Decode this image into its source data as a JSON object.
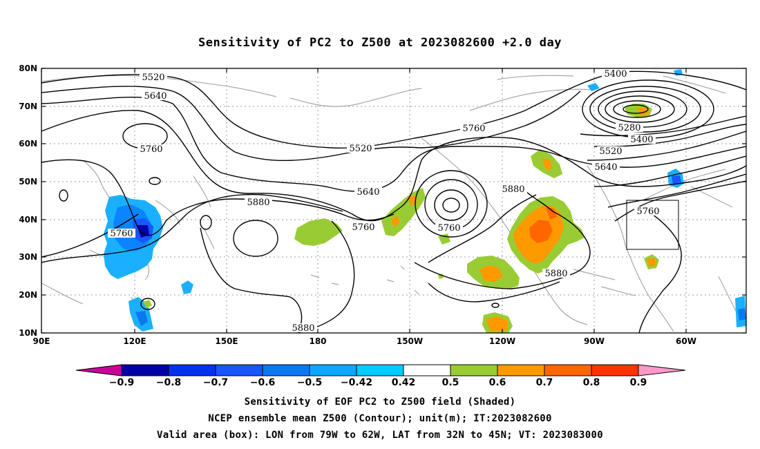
{
  "title": "Sensitivity of PC2 to Z500 at 2023082600 +2.0 day",
  "map": {
    "lat_ticks": [
      "80N",
      "70N",
      "60N",
      "50N",
      "40N",
      "30N",
      "20N",
      "10N"
    ],
    "lon_ticks": [
      "90E",
      "120E",
      "150E",
      "180",
      "150W",
      "120W",
      "90W",
      "60W"
    ],
    "contour_labels": [
      "5520",
      "5640",
      "5760",
      "5760",
      "5520",
      "5640",
      "5760",
      "5760",
      "5880",
      "5880",
      "5400",
      "5280",
      "5400",
      "5520",
      "5640",
      "5760",
      "5880",
      "5880",
      "5760"
    ],
    "valid_box": {
      "lon": [
        -79,
        -62
      ],
      "lat": [
        32,
        45
      ]
    }
  },
  "colorbar": {
    "labels": [
      "-0.9",
      "-0.8",
      "-0.7",
      "-0.6",
      "-0.5",
      "-0.42",
      "0.42",
      "0.5",
      "0.6",
      "0.7",
      "0.8",
      "0.9"
    ],
    "colors": [
      "#0000a8",
      "#0033ee",
      "#1a55ff",
      "#0a78f0",
      "#0aa8ff",
      "#00ccff",
      "#ffffff",
      "#99cc33",
      "#ff9900",
      "#ff6600",
      "#ff3300",
      "#ff0000"
    ],
    "low_arrow_color": "#cc0099",
    "high_arrow_color": "#ff99cc"
  },
  "captions": {
    "line1": "Sensitivity of EOF PC2 to Z500 field (Shaded)",
    "line2": "NCEP ensemble mean Z500 (Contour); unit(m); IT:2023082600",
    "line3": "Valid area (box): LON from 79W to 62W, LAT from 32N to 45N; VT: 2023083000"
  }
}
